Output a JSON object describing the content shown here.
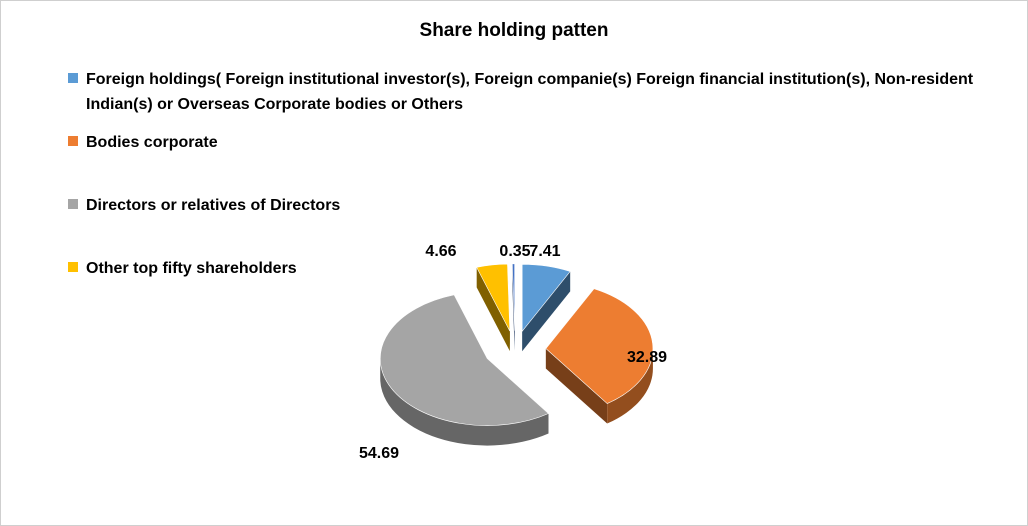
{
  "chart_data": {
    "type": "pie",
    "style": "3d-exploded",
    "title": "Share holding patten",
    "legend_position": "top-left",
    "slices": [
      {
        "label": "Foreign holdings( Foreign institutional  investor(s), Foreign companie(s) Foreign financial institution(s), Non-resident Indian(s) or Overseas Corporate bodies or Others",
        "value": 7.41,
        "display": "7.41",
        "color": "#5B9BD5"
      },
      {
        "label": "Bodies corporate",
        "value": 32.89,
        "display": "32.89",
        "color": "#ED7D31"
      },
      {
        "label": "Directors or relatives of Directors",
        "value": 54.69,
        "display": "54.69",
        "color": "#A5A5A5"
      },
      {
        "label": "Other top fifty shareholders",
        "value": 4.66,
        "display": "4.66",
        "color": "#FFC000"
      },
      {
        "label": "",
        "value": 0.35,
        "display": "0.35",
        "color": "#4472C4"
      }
    ]
  }
}
